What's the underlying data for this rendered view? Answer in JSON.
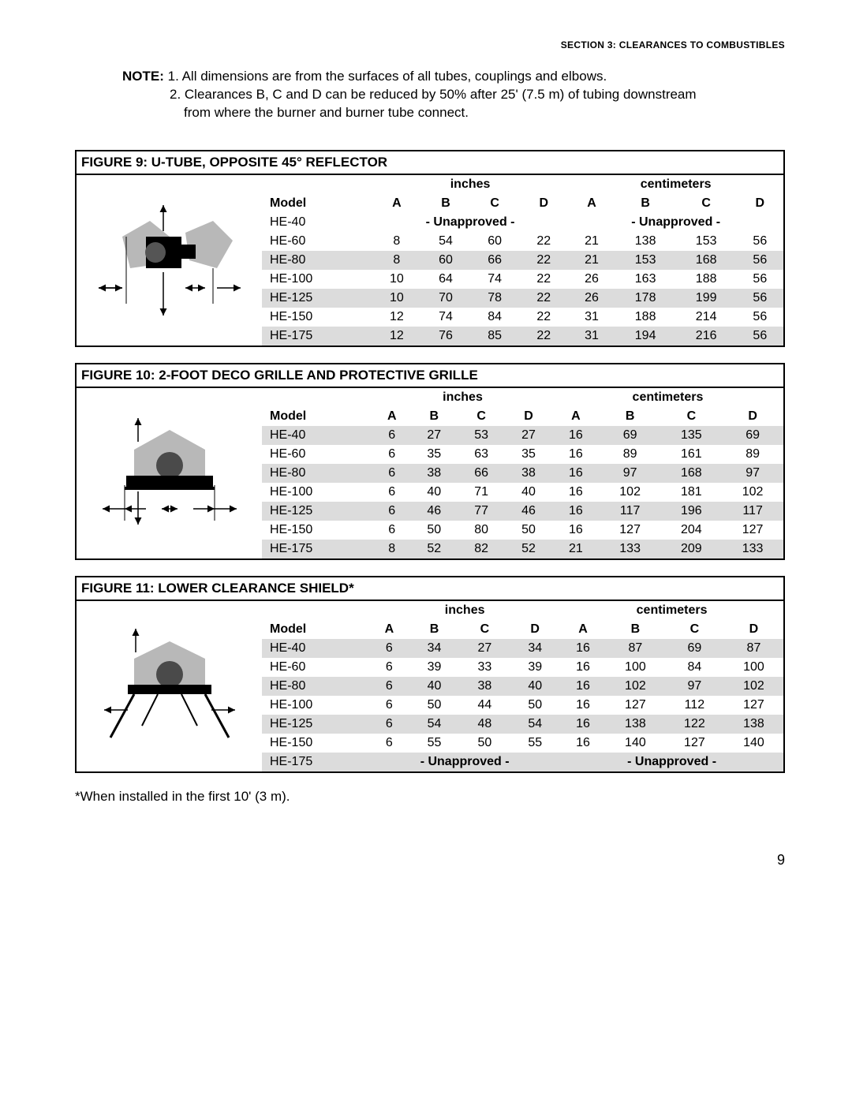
{
  "header": {
    "section": "SECTION 3: ",
    "title": "CLEARANCES TO COMBUSTIBLES"
  },
  "note": {
    "label": "NOTE:",
    "line1": "1. All dimensions are from the surfaces of all tubes, couplings and elbows.",
    "line2": "2. Clearances B, C and D can be reduced by 50% after 25' (7.5 m) of tubing downstream",
    "line3": "from where the burner and burner tube connect."
  },
  "unit_inches": "inches",
  "unit_cm": "centimeters",
  "cols": [
    "Model",
    "A",
    "B",
    "C",
    "D",
    "A",
    "B",
    "C",
    "D"
  ],
  "unapproved": "- Unapproved -",
  "figures": [
    {
      "title": "FIGURE 9: U-TUBE, OPPOSITE 45° REFLECTOR",
      "rows": [
        {
          "model": "HE-40",
          "un": true
        },
        {
          "model": "HE-60",
          "i": [
            "8",
            "54",
            "60",
            "22"
          ],
          "c": [
            "21",
            "138",
            "153",
            "56"
          ]
        },
        {
          "model": "HE-80",
          "i": [
            "8",
            "60",
            "66",
            "22"
          ],
          "c": [
            "21",
            "153",
            "168",
            "56"
          ],
          "shade": true
        },
        {
          "model": "HE-100",
          "i": [
            "10",
            "64",
            "74",
            "22"
          ],
          "c": [
            "26",
            "163",
            "188",
            "56"
          ]
        },
        {
          "model": "HE-125",
          "i": [
            "10",
            "70",
            "78",
            "22"
          ],
          "c": [
            "26",
            "178",
            "199",
            "56"
          ],
          "shade": true
        },
        {
          "model": "HE-150",
          "i": [
            "12",
            "74",
            "84",
            "22"
          ],
          "c": [
            "31",
            "188",
            "214",
            "56"
          ]
        },
        {
          "model": "HE-175",
          "i": [
            "12",
            "76",
            "85",
            "22"
          ],
          "c": [
            "31",
            "194",
            "216",
            "56"
          ],
          "shade": true
        }
      ]
    },
    {
      "title": "FIGURE 10: 2-FOOT DECO GRILLE AND PROTECTIVE GRILLE",
      "rows": [
        {
          "model": "HE-40",
          "i": [
            "6",
            "27",
            "53",
            "27"
          ],
          "c": [
            "16",
            "69",
            "135",
            "69"
          ],
          "shade": true
        },
        {
          "model": "HE-60",
          "i": [
            "6",
            "35",
            "63",
            "35"
          ],
          "c": [
            "16",
            "89",
            "161",
            "89"
          ]
        },
        {
          "model": "HE-80",
          "i": [
            "6",
            "38",
            "66",
            "38"
          ],
          "c": [
            "16",
            "97",
            "168",
            "97"
          ],
          "shade": true
        },
        {
          "model": "HE-100",
          "i": [
            "6",
            "40",
            "71",
            "40"
          ],
          "c": [
            "16",
            "102",
            "181",
            "102"
          ]
        },
        {
          "model": "HE-125",
          "i": [
            "6",
            "46",
            "77",
            "46"
          ],
          "c": [
            "16",
            "117",
            "196",
            "117"
          ],
          "shade": true
        },
        {
          "model": "HE-150",
          "i": [
            "6",
            "50",
            "80",
            "50"
          ],
          "c": [
            "16",
            "127",
            "204",
            "127"
          ]
        },
        {
          "model": "HE-175",
          "i": [
            "8",
            "52",
            "82",
            "52"
          ],
          "c": [
            "21",
            "133",
            "209",
            "133"
          ],
          "shade": true
        }
      ]
    },
    {
      "title": "FIGURE 11: LOWER CLEARANCE SHIELD*",
      "rows": [
        {
          "model": "HE-40",
          "i": [
            "6",
            "34",
            "27",
            "34"
          ],
          "c": [
            "16",
            "87",
            "69",
            "87"
          ],
          "shade": true
        },
        {
          "model": "HE-60",
          "i": [
            "6",
            "39",
            "33",
            "39"
          ],
          "c": [
            "16",
            "100",
            "84",
            "100"
          ]
        },
        {
          "model": "HE-80",
          "i": [
            "6",
            "40",
            "38",
            "40"
          ],
          "c": [
            "16",
            "102",
            "97",
            "102"
          ],
          "shade": true
        },
        {
          "model": "HE-100",
          "i": [
            "6",
            "50",
            "44",
            "50"
          ],
          "c": [
            "16",
            "127",
            "112",
            "127"
          ]
        },
        {
          "model": "HE-125",
          "i": [
            "6",
            "54",
            "48",
            "54"
          ],
          "c": [
            "16",
            "138",
            "122",
            "138"
          ],
          "shade": true
        },
        {
          "model": "HE-150",
          "i": [
            "6",
            "55",
            "50",
            "55"
          ],
          "c": [
            "16",
            "140",
            "127",
            "140"
          ]
        },
        {
          "model": "HE-175",
          "un": true,
          "shade": true
        }
      ]
    }
  ],
  "footnote": "*When installed in the first 10' (3 m).",
  "pagenum": "9"
}
